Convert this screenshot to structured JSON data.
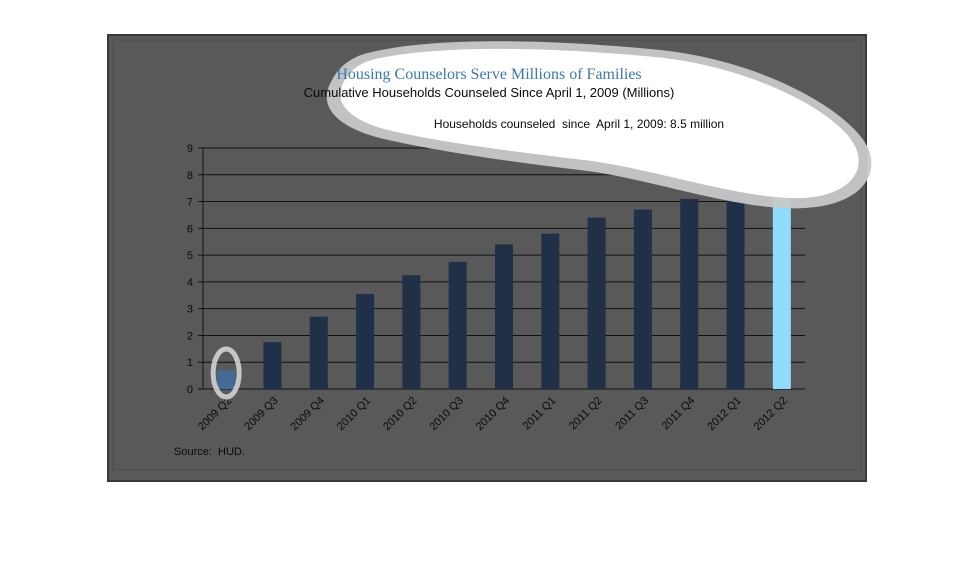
{
  "chart_data": {
    "type": "bar",
    "title": "Housing Counselors Serve Millions of Families",
    "subtitle": "Cumulative Households Counseled Since April 1, 2009 (Millions)",
    "annotation": "Households counseled  since  April 1, 2009: 8.5 million",
    "source": "Source:  HUD.",
    "categories": [
      "2009 Q2",
      "2009 Q3",
      "2009 Q4",
      "2010 Q1",
      "2010 Q2",
      "2010 Q3",
      "2010 Q4",
      "2011 Q1",
      "2011 Q2",
      "2011 Q3",
      "2011 Q4",
      "2012 Q1",
      "2012 Q2"
    ],
    "values": [
      0.7,
      1.75,
      2.7,
      3.55,
      4.25,
      4.75,
      5.4,
      5.8,
      6.4,
      6.7,
      7.1,
      7.55,
      8.5
    ],
    "ylim": [
      0,
      9
    ],
    "yticks": [
      0,
      1,
      2,
      3,
      4,
      5,
      6,
      7,
      8,
      9
    ],
    "grid": true,
    "legend": "none",
    "highlighted": [
      "2009 Q2",
      "2012 Q2"
    ],
    "colors": {
      "panel": "#595959",
      "panel_border": "#3a3a3a",
      "bar": "#1f3047",
      "bar_first": "#456a96",
      "bar_last": "#8fdcff",
      "title": "#3b79ad",
      "text": "#0a0a0a",
      "grid": "#111111",
      "callout_fill": "#ffffff",
      "callout_ring": "#c4c4c4"
    }
  }
}
